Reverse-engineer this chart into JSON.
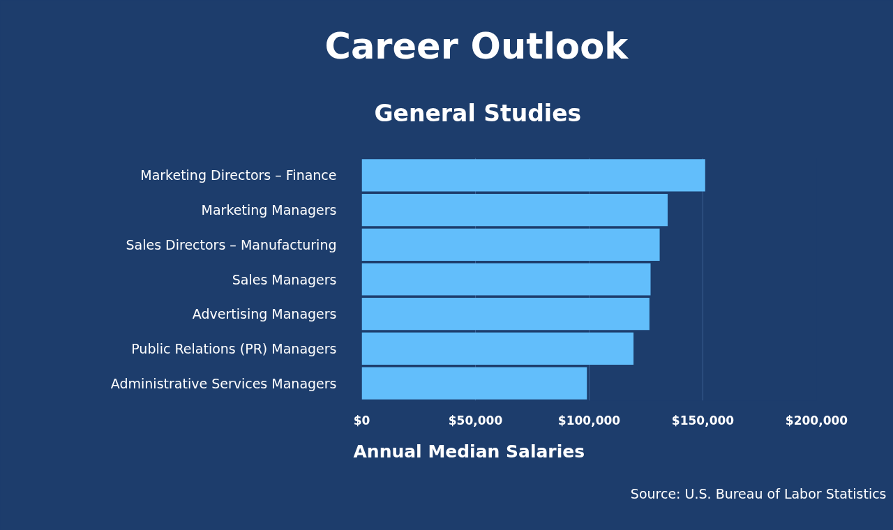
{
  "chart_data": {
    "type": "bar",
    "orientation": "horizontal",
    "title": "Career Outlook",
    "subtitle": "General Studies",
    "xlabel": "Annual Median Salaries",
    "categories": [
      "Marketing Directors – Finance",
      "Marketing Managers",
      "Sales Directors – Manufacturing",
      "Sales Managers",
      "Advertising Managers",
      "Public Relations (PR) Managers",
      "Administrative Services Managers"
    ],
    "values": [
      151000,
      134500,
      131000,
      127000,
      126500,
      119500,
      99000
    ],
    "color": "#62befb",
    "xlim": [
      0,
      200000
    ],
    "xticks": [
      {
        "value": 0,
        "label": "$0"
      },
      {
        "value": 50000,
        "label": "$50,000"
      },
      {
        "value": 100000,
        "label": "$100,000"
      },
      {
        "value": 150000,
        "label": "$150,000"
      },
      {
        "value": 200000,
        "label": "$200,000"
      }
    ],
    "grid": "x",
    "annotations": [
      "Source: U.S. Bureau of Labor Statistics"
    ]
  }
}
